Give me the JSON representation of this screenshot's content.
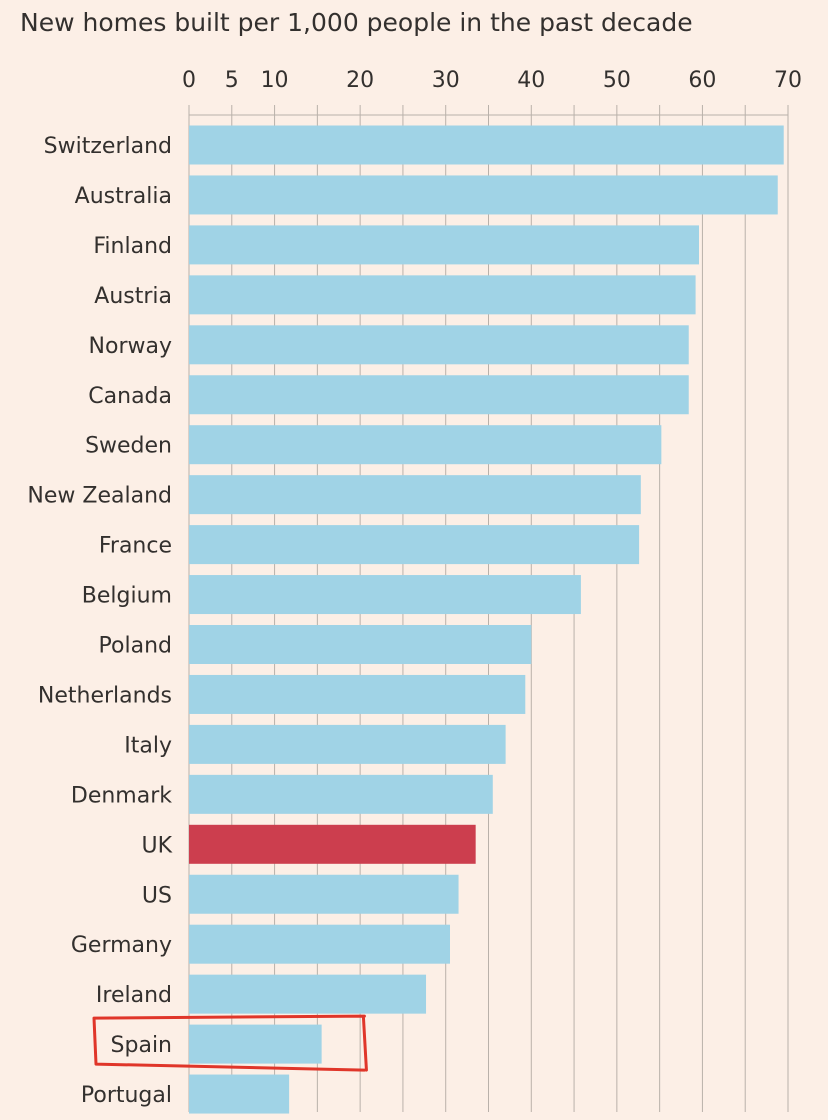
{
  "chart_data": {
    "type": "bar",
    "orientation": "horizontal",
    "title": "New homes built per 1,000 people in the past decade",
    "xlim": [
      0,
      70
    ],
    "xticks": [
      0,
      5,
      10,
      20,
      30,
      40,
      50,
      60,
      70
    ],
    "grid": true,
    "categories": [
      "Switzerland",
      "Australia",
      "Finland",
      "Austria",
      "Norway",
      "Canada",
      "Sweden",
      "New Zealand",
      "France",
      "Belgium",
      "Poland",
      "Netherlands",
      "Italy",
      "Denmark",
      "UK",
      "US",
      "Germany",
      "Ireland",
      "Spain",
      "Portugal"
    ],
    "values": [
      69.5,
      68.8,
      59.6,
      59.2,
      58.4,
      58.4,
      55.2,
      52.8,
      52.6,
      45.8,
      40.0,
      39.3,
      37.0,
      35.5,
      33.5,
      31.5,
      30.5,
      27.7,
      15.5,
      11.7
    ],
    "colors": {
      "default": "#a0d3e6",
      "highlight": "#cc3e4e",
      "annotation": "#e0362a",
      "grid": "#b9b1aa",
      "background": "#fcefe6"
    },
    "highlighted_category": "UK",
    "annotated_category": "Spain"
  }
}
